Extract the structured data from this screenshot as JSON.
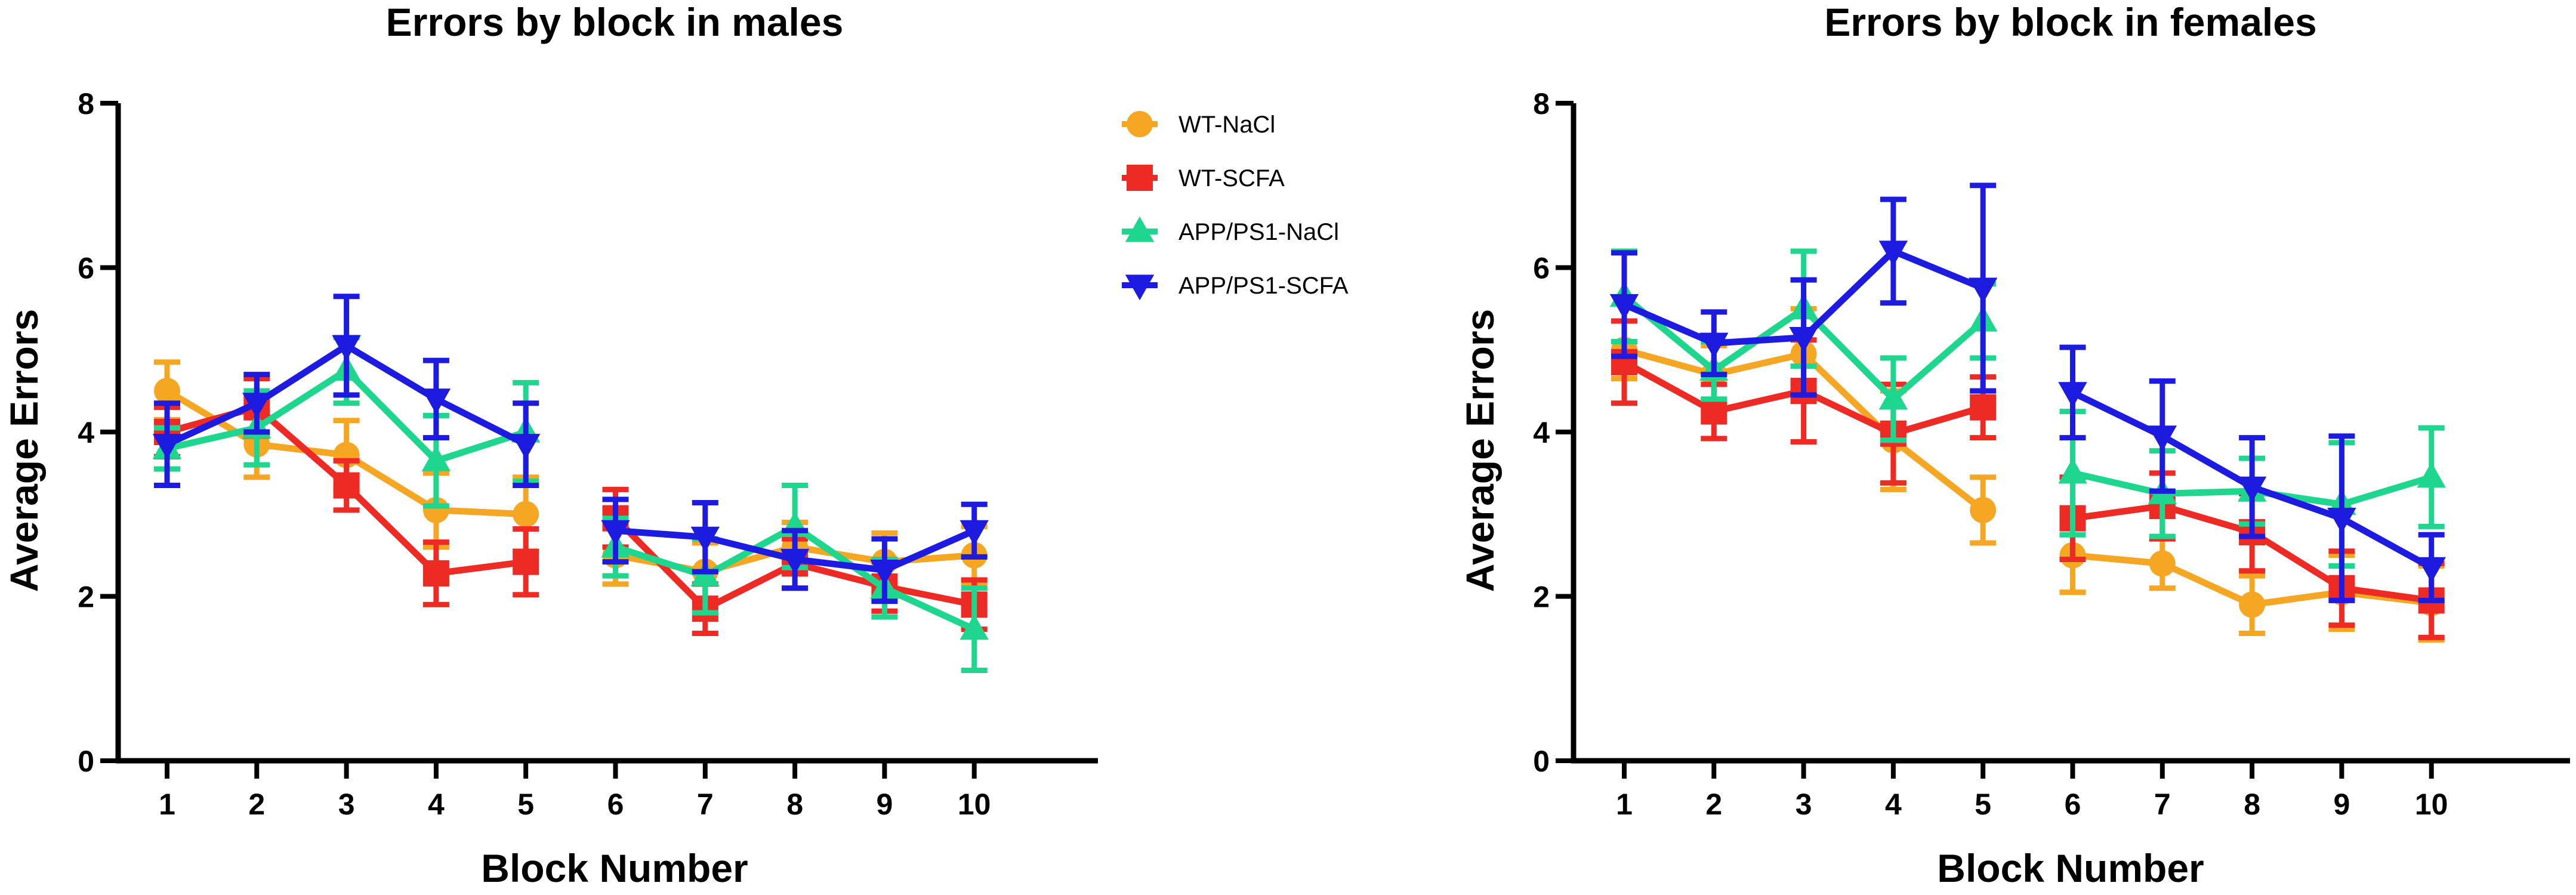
{
  "colors": {
    "WT-NaCl": "#F5A623",
    "WT-SCFA": "#EE2A24",
    "APP/PS1-NaCl": "#1FD68E",
    "APP/PS1-SCFA": "#1E1BE0"
  },
  "legend": [
    {
      "name": "WT-NaCl",
      "marker": "circle"
    },
    {
      "name": "WT-SCFA",
      "marker": "square"
    },
    {
      "name": "APP/PS1-NaCl",
      "marker": "triangle-up"
    },
    {
      "name": "APP/PS1-SCFA",
      "marker": "triangle-down"
    }
  ],
  "chart_data": [
    {
      "type": "line",
      "title": "Errors by block in males",
      "xlabel": "Block Number",
      "ylabel": "Average Errors",
      "ylim": [
        0,
        8
      ],
      "yticks": [
        0,
        2,
        4,
        6,
        8
      ],
      "x": [
        1,
        2,
        3,
        4,
        5,
        6,
        7,
        8,
        9,
        10
      ],
      "segments": [
        [
          1,
          5
        ],
        [
          6,
          10
        ]
      ],
      "legend_position": "top-right",
      "series": [
        {
          "name": "WT-NaCl",
          "values": [
            4.5,
            3.85,
            3.72,
            3.05,
            3.0,
            2.5,
            2.3,
            2.6,
            2.42,
            2.5
          ],
          "errors": [
            0.35,
            0.4,
            0.42,
            0.45,
            0.45,
            0.35,
            0.35,
            0.3,
            0.35,
            0.35
          ]
        },
        {
          "name": "WT-SCFA",
          "values": [
            4.0,
            4.3,
            3.35,
            2.28,
            2.42,
            2.95,
            1.85,
            2.4,
            2.12,
            1.9
          ],
          "errors": [
            0.3,
            0.35,
            0.3,
            0.38,
            0.4,
            0.35,
            0.3,
            0.3,
            0.3,
            0.3
          ]
        },
        {
          "name": "APP/PS1-NaCl",
          "values": [
            3.8,
            4.05,
            4.75,
            3.65,
            4.0,
            2.6,
            2.25,
            2.85,
            2.1,
            1.6
          ],
          "errors": [
            0.25,
            0.45,
            0.4,
            0.55,
            0.6,
            0.35,
            0.45,
            0.5,
            0.35,
            0.5
          ]
        },
        {
          "name": "APP/PS1-SCFA",
          "values": [
            3.85,
            4.35,
            5.05,
            4.4,
            3.85,
            2.8,
            2.72,
            2.45,
            2.32,
            2.8
          ],
          "errors": [
            0.5,
            0.35,
            0.6,
            0.47,
            0.5,
            0.38,
            0.42,
            0.35,
            0.38,
            0.32
          ]
        }
      ]
    },
    {
      "type": "line",
      "title": "Errors by block in females",
      "xlabel": "Block Number",
      "ylabel": "Average Errors",
      "ylim": [
        0,
        8
      ],
      "yticks": [
        0,
        2,
        4,
        6,
        8
      ],
      "x": [
        1,
        2,
        3,
        4,
        5,
        6,
        7,
        8,
        9,
        10
      ],
      "segments": [
        [
          1,
          5
        ],
        [
          6,
          10
        ]
      ],
      "series": [
        {
          "name": "WT-NaCl",
          "values": [
            5.0,
            4.7,
            4.95,
            3.9,
            3.05,
            2.5,
            2.4,
            1.9,
            2.05,
            1.92
          ],
          "errors": [
            0.35,
            0.35,
            0.55,
            0.6,
            0.4,
            0.45,
            0.3,
            0.35,
            0.45,
            0.45
          ]
        },
        {
          "name": "WT-SCFA",
          "values": [
            4.85,
            4.25,
            4.5,
            3.98,
            4.3,
            2.95,
            3.1,
            2.78,
            2.1,
            1.95
          ],
          "errors": [
            0.5,
            0.33,
            0.62,
            0.6,
            0.37,
            0.5,
            0.4,
            0.47,
            0.45,
            0.45
          ]
        },
        {
          "name": "APP/PS1-NaCl",
          "values": [
            5.65,
            4.75,
            5.5,
            4.4,
            5.35,
            3.5,
            3.25,
            3.28,
            3.12,
            3.45
          ],
          "errors": [
            0.55,
            0.35,
            0.7,
            0.5,
            0.45,
            0.75,
            0.52,
            0.4,
            0.75,
            0.6
          ]
        },
        {
          "name": "APP/PS1-SCFA",
          "values": [
            5.55,
            5.08,
            5.15,
            6.2,
            5.75,
            4.48,
            3.95,
            3.33,
            2.95,
            2.35
          ],
          "errors": [
            0.63,
            0.38,
            0.7,
            0.63,
            1.25,
            0.55,
            0.67,
            0.6,
            1.0,
            0.4
          ]
        }
      ]
    }
  ]
}
